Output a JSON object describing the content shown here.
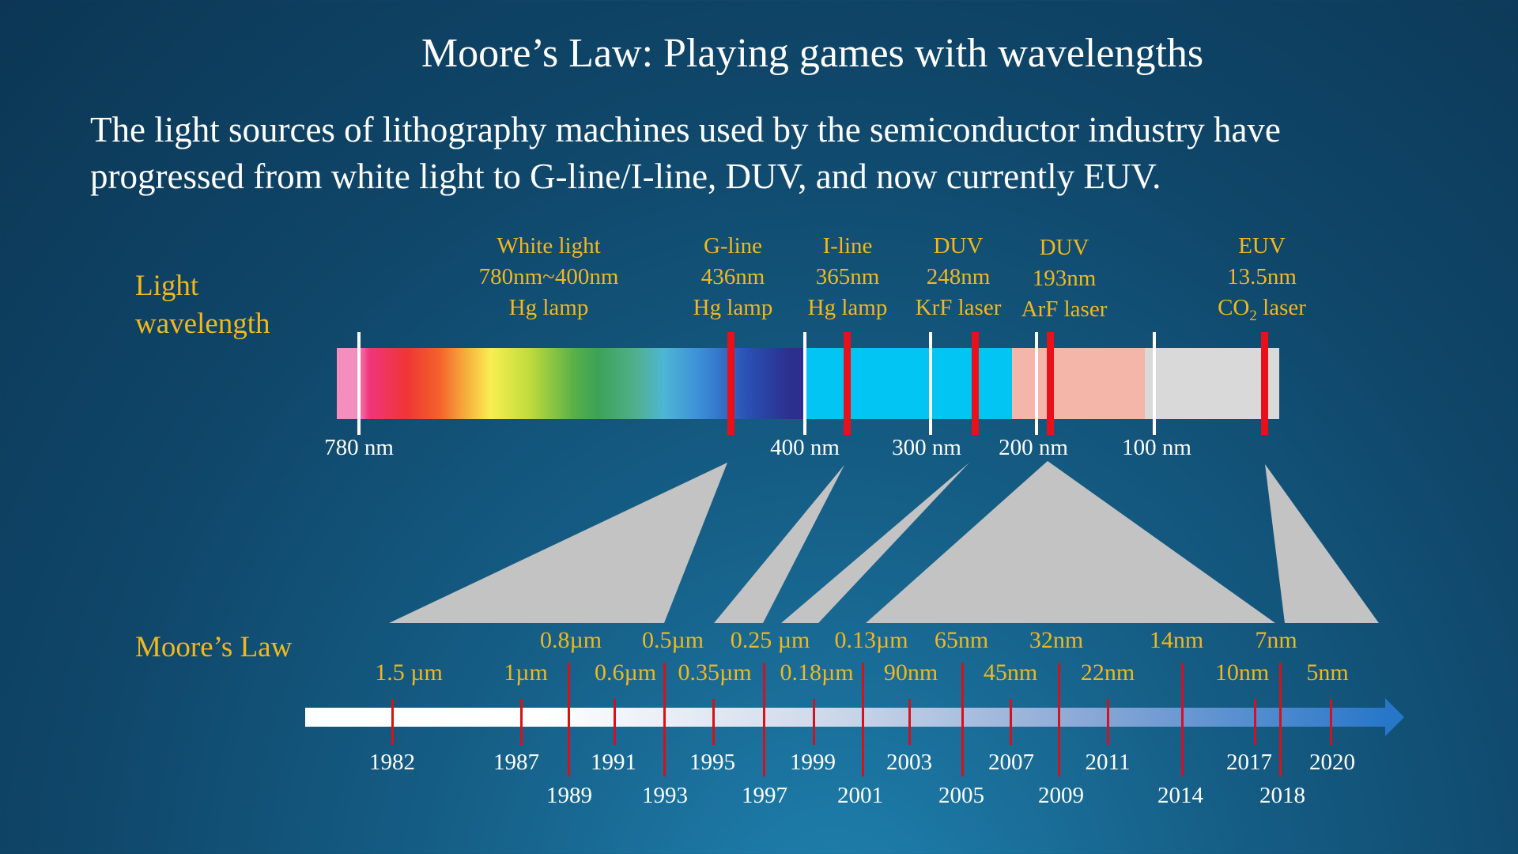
{
  "title": "Moore’s Law: Playing games with wavelengths",
  "subtitle_lines": [
    "The light sources of lithography machines used by the semiconductor industry have",
    "progressed from white light to G-line/I-line, DUV, and now currently EUV."
  ],
  "light_wavelength_label": [
    "Light",
    "wavelength"
  ],
  "moores_law_label": "Moore’s Law",
  "light_sources": [
    {
      "name": "White light",
      "wavelength": "780nm~400nm",
      "source": "Hg lamp"
    },
    {
      "name": "G-line",
      "wavelength": "436nm",
      "source": "Hg lamp"
    },
    {
      "name": "I-line",
      "wavelength": "365nm",
      "source": "Hg lamp"
    },
    {
      "name": "DUV",
      "wavelength": "248nm",
      "source": "KrF laser"
    },
    {
      "name": "DUV",
      "wavelength": "193nm",
      "source": "ArF laser"
    },
    {
      "name": "EUV",
      "wavelength": "13.5nm",
      "source_main": "CO",
      "source_sub": "2",
      "source_tail": " laser"
    }
  ],
  "wavelength_ticks": [
    "780 nm",
    "400 nm",
    "300 nm",
    "200 nm",
    "100 nm"
  ],
  "process_nodes_top": [
    "0.8µm",
    "0.5µm",
    "0.25 µm",
    "0.13µm",
    "65nm",
    "32nm",
    "14nm",
    "7nm"
  ],
  "process_nodes_bottom": [
    "1.5 µm",
    "1µm",
    "0.6µm",
    "0.35µm",
    "0.18µm",
    "90nm",
    "45nm",
    "22nm",
    "10nm",
    "5nm"
  ],
  "years_upper": [
    "1982",
    "1987",
    "1991",
    "1995",
    "1999",
    "2003",
    "2007",
    "2011",
    "2017",
    "2020"
  ],
  "years_lower": [
    "1989",
    "1993",
    "1997",
    "2001",
    "2005",
    "2009",
    "2014",
    "2018"
  ],
  "colors": {
    "accent_text": "#f2b81c",
    "marker_red": "#e8101a",
    "funnel_gray": "#c3c3c3",
    "timeline_end": "#2777c9"
  }
}
